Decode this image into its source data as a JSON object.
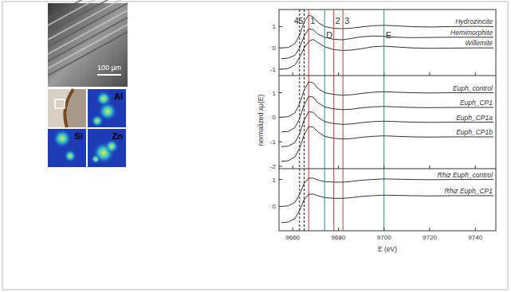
{
  "images": {
    "sem": {
      "scale_bar": "100 µm"
    },
    "maps": [
      {
        "label": "Al"
      },
      {
        "label": "Si"
      },
      {
        "label": "Zn"
      }
    ]
  },
  "chart_data": [
    {
      "type": "line",
      "tick_labels": "y",
      "x": [
        9655,
        9658,
        9661,
        9663,
        9665,
        9667,
        9669,
        9671,
        9674,
        9678,
        9682,
        9686,
        9690,
        9695,
        9700,
        9706,
        9712,
        9720,
        9730,
        9740,
        9748
      ],
      "xlim": [
        9654,
        9749
      ],
      "xticks": [
        9660,
        9680,
        9700,
        9720,
        9740
      ],
      "ylim": [
        -1.3,
        1.8
      ],
      "yticks": [
        -1,
        0,
        1
      ],
      "series": [
        {
          "name": "Hydrozincite",
          "color": "#333333",
          "values": [
            0,
            0.02,
            0.2,
            0.6,
            1.2,
            1.55,
            1.45,
            1.2,
            1.0,
            0.92,
            0.9,
            0.93,
            0.98,
            1.04,
            1.06,
            1.03,
            1.0,
            0.98,
            1.0,
            1.01,
            1.0
          ]
        },
        {
          "name": "Hemimorphite",
          "color": "#333333",
          "values": [
            -0.5,
            -0.48,
            -0.35,
            0,
            0.55,
            0.9,
            0.85,
            0.65,
            0.5,
            0.4,
            0.38,
            0.45,
            0.52,
            0.56,
            0.54,
            0.5,
            0.48,
            0.49,
            0.5,
            0.5,
            0.5
          ]
        },
        {
          "name": "Willemite",
          "color": "#333333",
          "values": [
            -1,
            -0.97,
            -0.8,
            -0.45,
            0,
            0.3,
            0.4,
            0.25,
            0.05,
            -0.08,
            -0.12,
            -0.1,
            -0.04,
            0.05,
            0.08,
            0.04,
            0,
            -0.02,
            -0.01,
            0,
            0
          ]
        }
      ],
      "annotations": [
        {
          "label": "4",
          "x": 9663,
          "color": "#222222",
          "line_style": "dashed"
        },
        {
          "label": "5",
          "x": 9665,
          "color": "#222222",
          "line_style": "dashed"
        },
        {
          "label": "1",
          "x": 9667,
          "color": "#d9342b",
          "line_style": "solid"
        },
        {
          "label": "D",
          "x": 9674,
          "color": "#1a9a8a",
          "line_style": "solid"
        },
        {
          "label": "2",
          "x": 9678,
          "color": "#d9342b",
          "line_style": "solid"
        },
        {
          "label": "3",
          "x": 9682,
          "color": "#d9342b",
          "line_style": "solid"
        },
        {
          "label": "E",
          "x": 9700,
          "color": "#1a9a8a",
          "line_style": "solid"
        }
      ]
    },
    {
      "type": "line",
      "tick_labels": "y",
      "y_label": "normalized xμ(E)",
      "x": [
        9655,
        9658,
        9661,
        9663,
        9665,
        9667,
        9669,
        9671,
        9674,
        9678,
        9682,
        9686,
        9690,
        9695,
        9700,
        9706,
        9712,
        9720,
        9730,
        9740,
        9748
      ],
      "xlim": [
        9654,
        9749
      ],
      "xticks": [
        9660,
        9680,
        9700,
        9720,
        9740
      ],
      "ylim": [
        -2.1,
        1.7
      ],
      "yticks": [
        -2,
        -1,
        0,
        1
      ],
      "series": [
        {
          "name": "Euph_control",
          "color": "#333333",
          "values": [
            0,
            0.02,
            0.18,
            0.55,
            1.1,
            1.45,
            1.4,
            1.18,
            1.0,
            0.93,
            0.9,
            0.92,
            0.97,
            1.02,
            1.04,
            1.02,
            1.0,
            0.99,
            1.0,
            1.0,
            1.0
          ]
        },
        {
          "name": "Euph_CP1",
          "color": "#333333",
          "values": [
            -0.6,
            -0.58,
            -0.42,
            -0.05,
            0.5,
            0.85,
            0.82,
            0.6,
            0.42,
            0.34,
            0.31,
            0.33,
            0.38,
            0.42,
            0.44,
            0.42,
            0.4,
            0.39,
            0.4,
            0.4,
            0.4
          ]
        },
        {
          "name": "Euph_CP1a",
          "color": "#333333",
          "values": [
            -1.2,
            -1.18,
            -1.03,
            -0.68,
            -0.12,
            0.22,
            0.2,
            0.0,
            -0.18,
            -0.26,
            -0.29,
            -0.27,
            -0.22,
            -0.18,
            -0.16,
            -0.18,
            -0.2,
            -0.21,
            -0.2,
            -0.2,
            -0.2
          ]
        },
        {
          "name": "Euph_CP1b",
          "color": "#333333",
          "values": [
            -1.8,
            -1.78,
            -1.62,
            -1.27,
            -0.72,
            -0.38,
            -0.4,
            -0.6,
            -0.78,
            -0.86,
            -0.89,
            -0.87,
            -0.82,
            -0.78,
            -0.76,
            -0.78,
            -0.8,
            -0.81,
            -0.8,
            -0.8,
            -0.8
          ]
        }
      ]
    },
    {
      "type": "line",
      "x_label": "E (eV)",
      "x": [
        9655,
        9658,
        9661,
        9663,
        9665,
        9667,
        9669,
        9671,
        9674,
        9678,
        9682,
        9686,
        9690,
        9695,
        9700,
        9706,
        9712,
        9720,
        9730,
        9740,
        9748
      ],
      "xlim": [
        9654,
        9749
      ],
      "xticks": [
        9660,
        9680,
        9700,
        9720,
        9740
      ],
      "ylim": [
        -0.9,
        1.4
      ],
      "yticks": [
        0,
        1
      ],
      "series": [
        {
          "name": "Rhiz Euph_control",
          "color": "#333333",
          "values": [
            0,
            0.02,
            0.15,
            0.45,
            0.85,
            1.05,
            1.05,
            0.98,
            0.92,
            0.9,
            0.9,
            0.93,
            0.97,
            1.0,
            1.02,
            1.01,
            1.0,
            0.99,
            1.0,
            1.0,
            1.0
          ]
        },
        {
          "name": "Rhiz Euph_CP1",
          "color": "#333333",
          "values": [
            -0.6,
            -0.58,
            -0.45,
            -0.15,
            0.25,
            0.45,
            0.46,
            0.4,
            0.33,
            0.3,
            0.3,
            0.33,
            0.37,
            0.4,
            0.42,
            0.41,
            0.4,
            0.39,
            0.4,
            0.4,
            0.4
          ]
        }
      ]
    }
  ]
}
